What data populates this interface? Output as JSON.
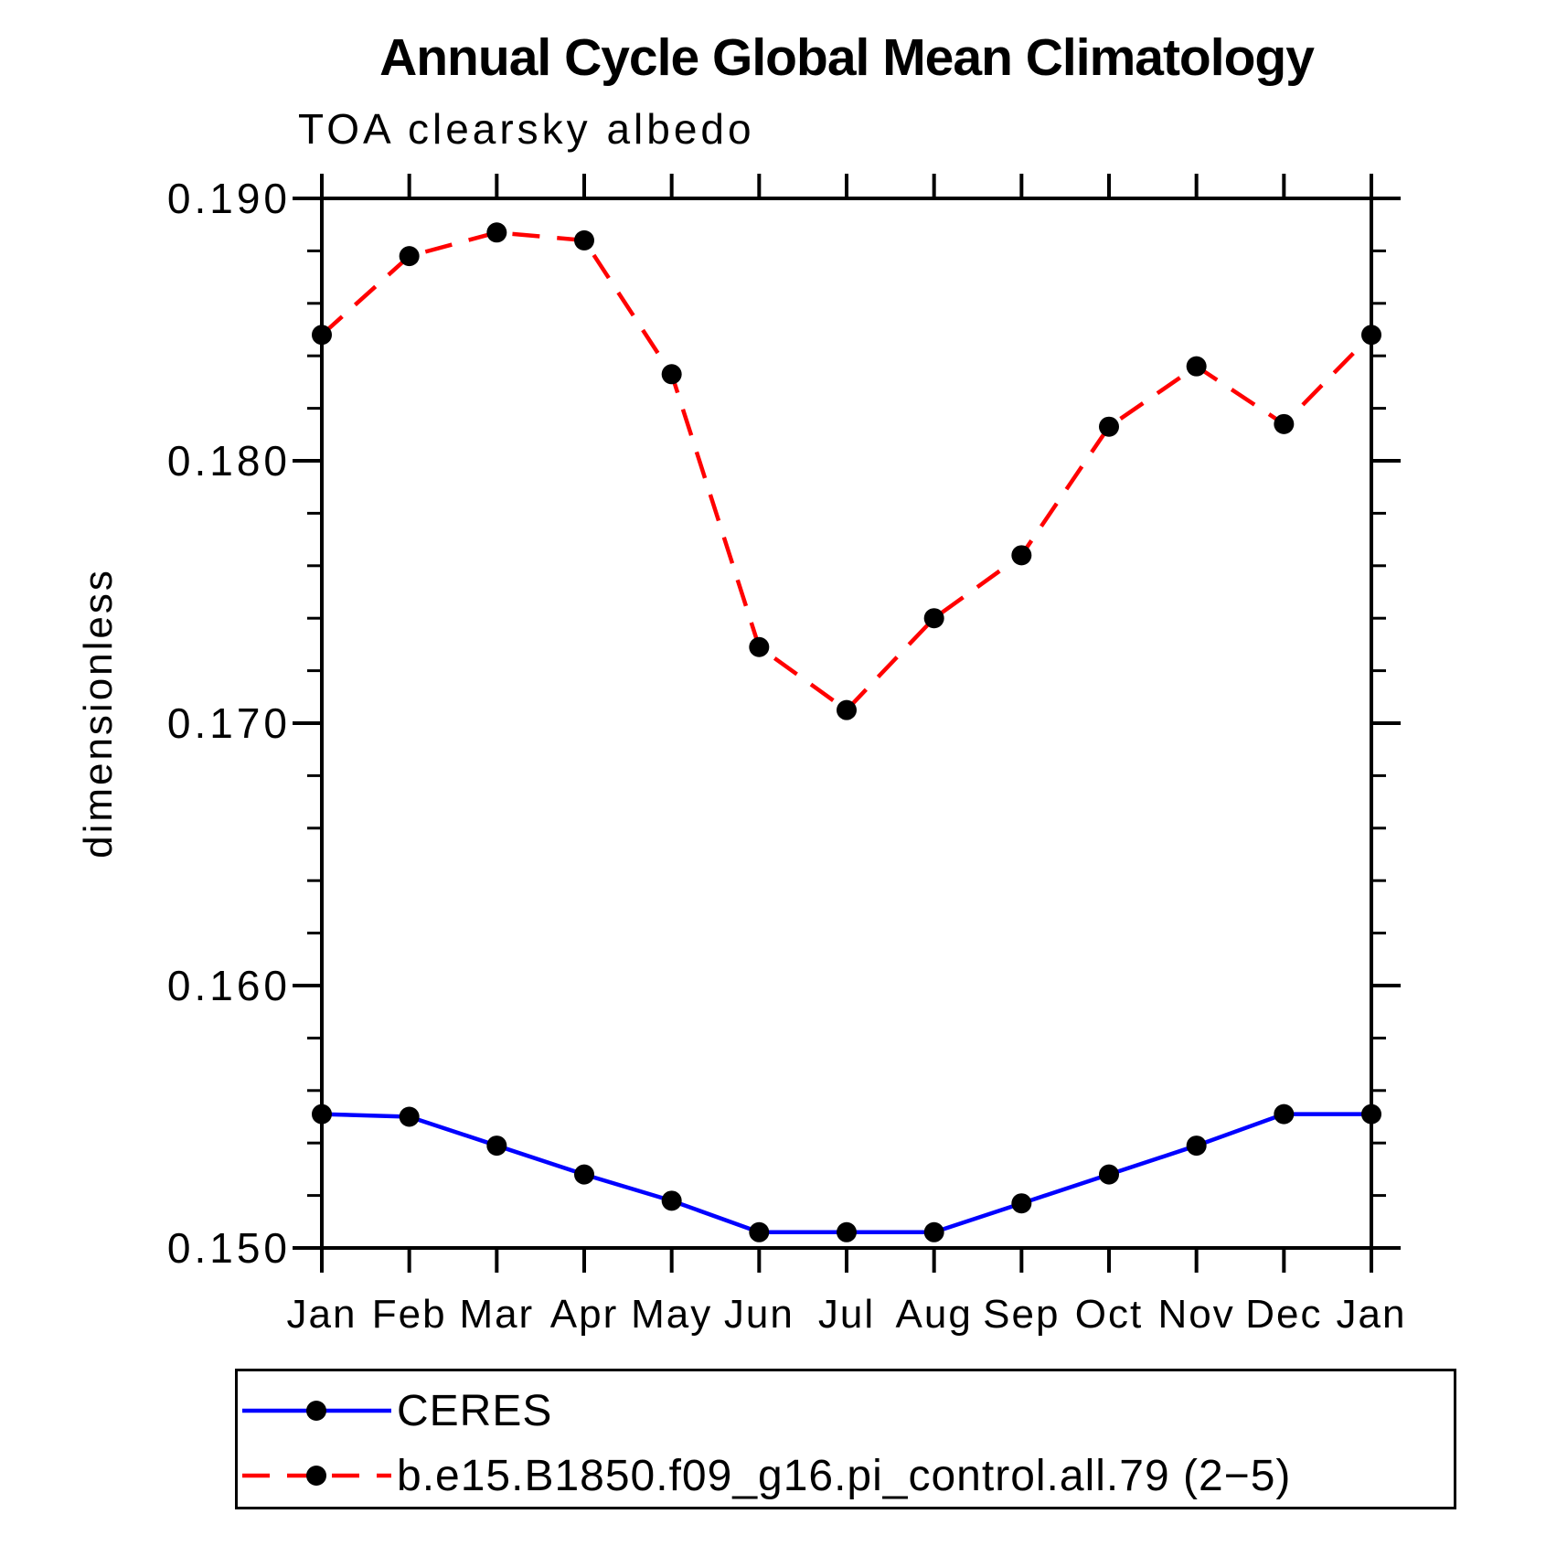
{
  "title": "Annual Cycle Global Mean Climatology",
  "subtitle": "TOA clearsky albedo",
  "ylabel": "dimensionless",
  "chart_data": {
    "type": "line",
    "categories": [
      "Jan",
      "Feb",
      "Mar",
      "Apr",
      "May",
      "Jun",
      "Jul",
      "Aug",
      "Sep",
      "Oct",
      "Nov",
      "Dec",
      "Jan"
    ],
    "series": [
      {
        "name": "CERES",
        "color": "#0000ff",
        "line_style": "solid",
        "marker": "filled-circle",
        "marker_color": "#000000",
        "values": [
          0.1551,
          0.155,
          0.1539,
          0.1528,
          0.1518,
          0.1506,
          0.1506,
          0.1506,
          0.1517,
          0.1528,
          0.1539,
          0.1551,
          0.1551
        ]
      },
      {
        "name": "b.e15.B1850.f09_g16.pi_control.all.79 (2−5)",
        "color": "#ff0000",
        "line_style": "dashed",
        "marker": "filled-circle",
        "marker_color": "#000000",
        "values": [
          0.1848,
          0.1878,
          0.1887,
          0.1884,
          0.1833,
          0.1729,
          0.1705,
          0.174,
          0.1764,
          0.1813,
          0.1836,
          0.1814,
          0.1848
        ]
      }
    ],
    "xlabel": "",
    "ylabel": "dimensionless",
    "ylim": [
      0.15,
      0.19
    ],
    "yticks": [
      {
        "value": 0.15,
        "label": "0.150"
      },
      {
        "value": 0.16,
        "label": "0.160"
      },
      {
        "value": 0.17,
        "label": "0.170"
      },
      {
        "value": 0.18,
        "label": "0.180"
      },
      {
        "value": 0.19,
        "label": "0.190"
      }
    ],
    "ytick_minor_step": 0.002,
    "grid": false,
    "legend_position": "bottom"
  }
}
